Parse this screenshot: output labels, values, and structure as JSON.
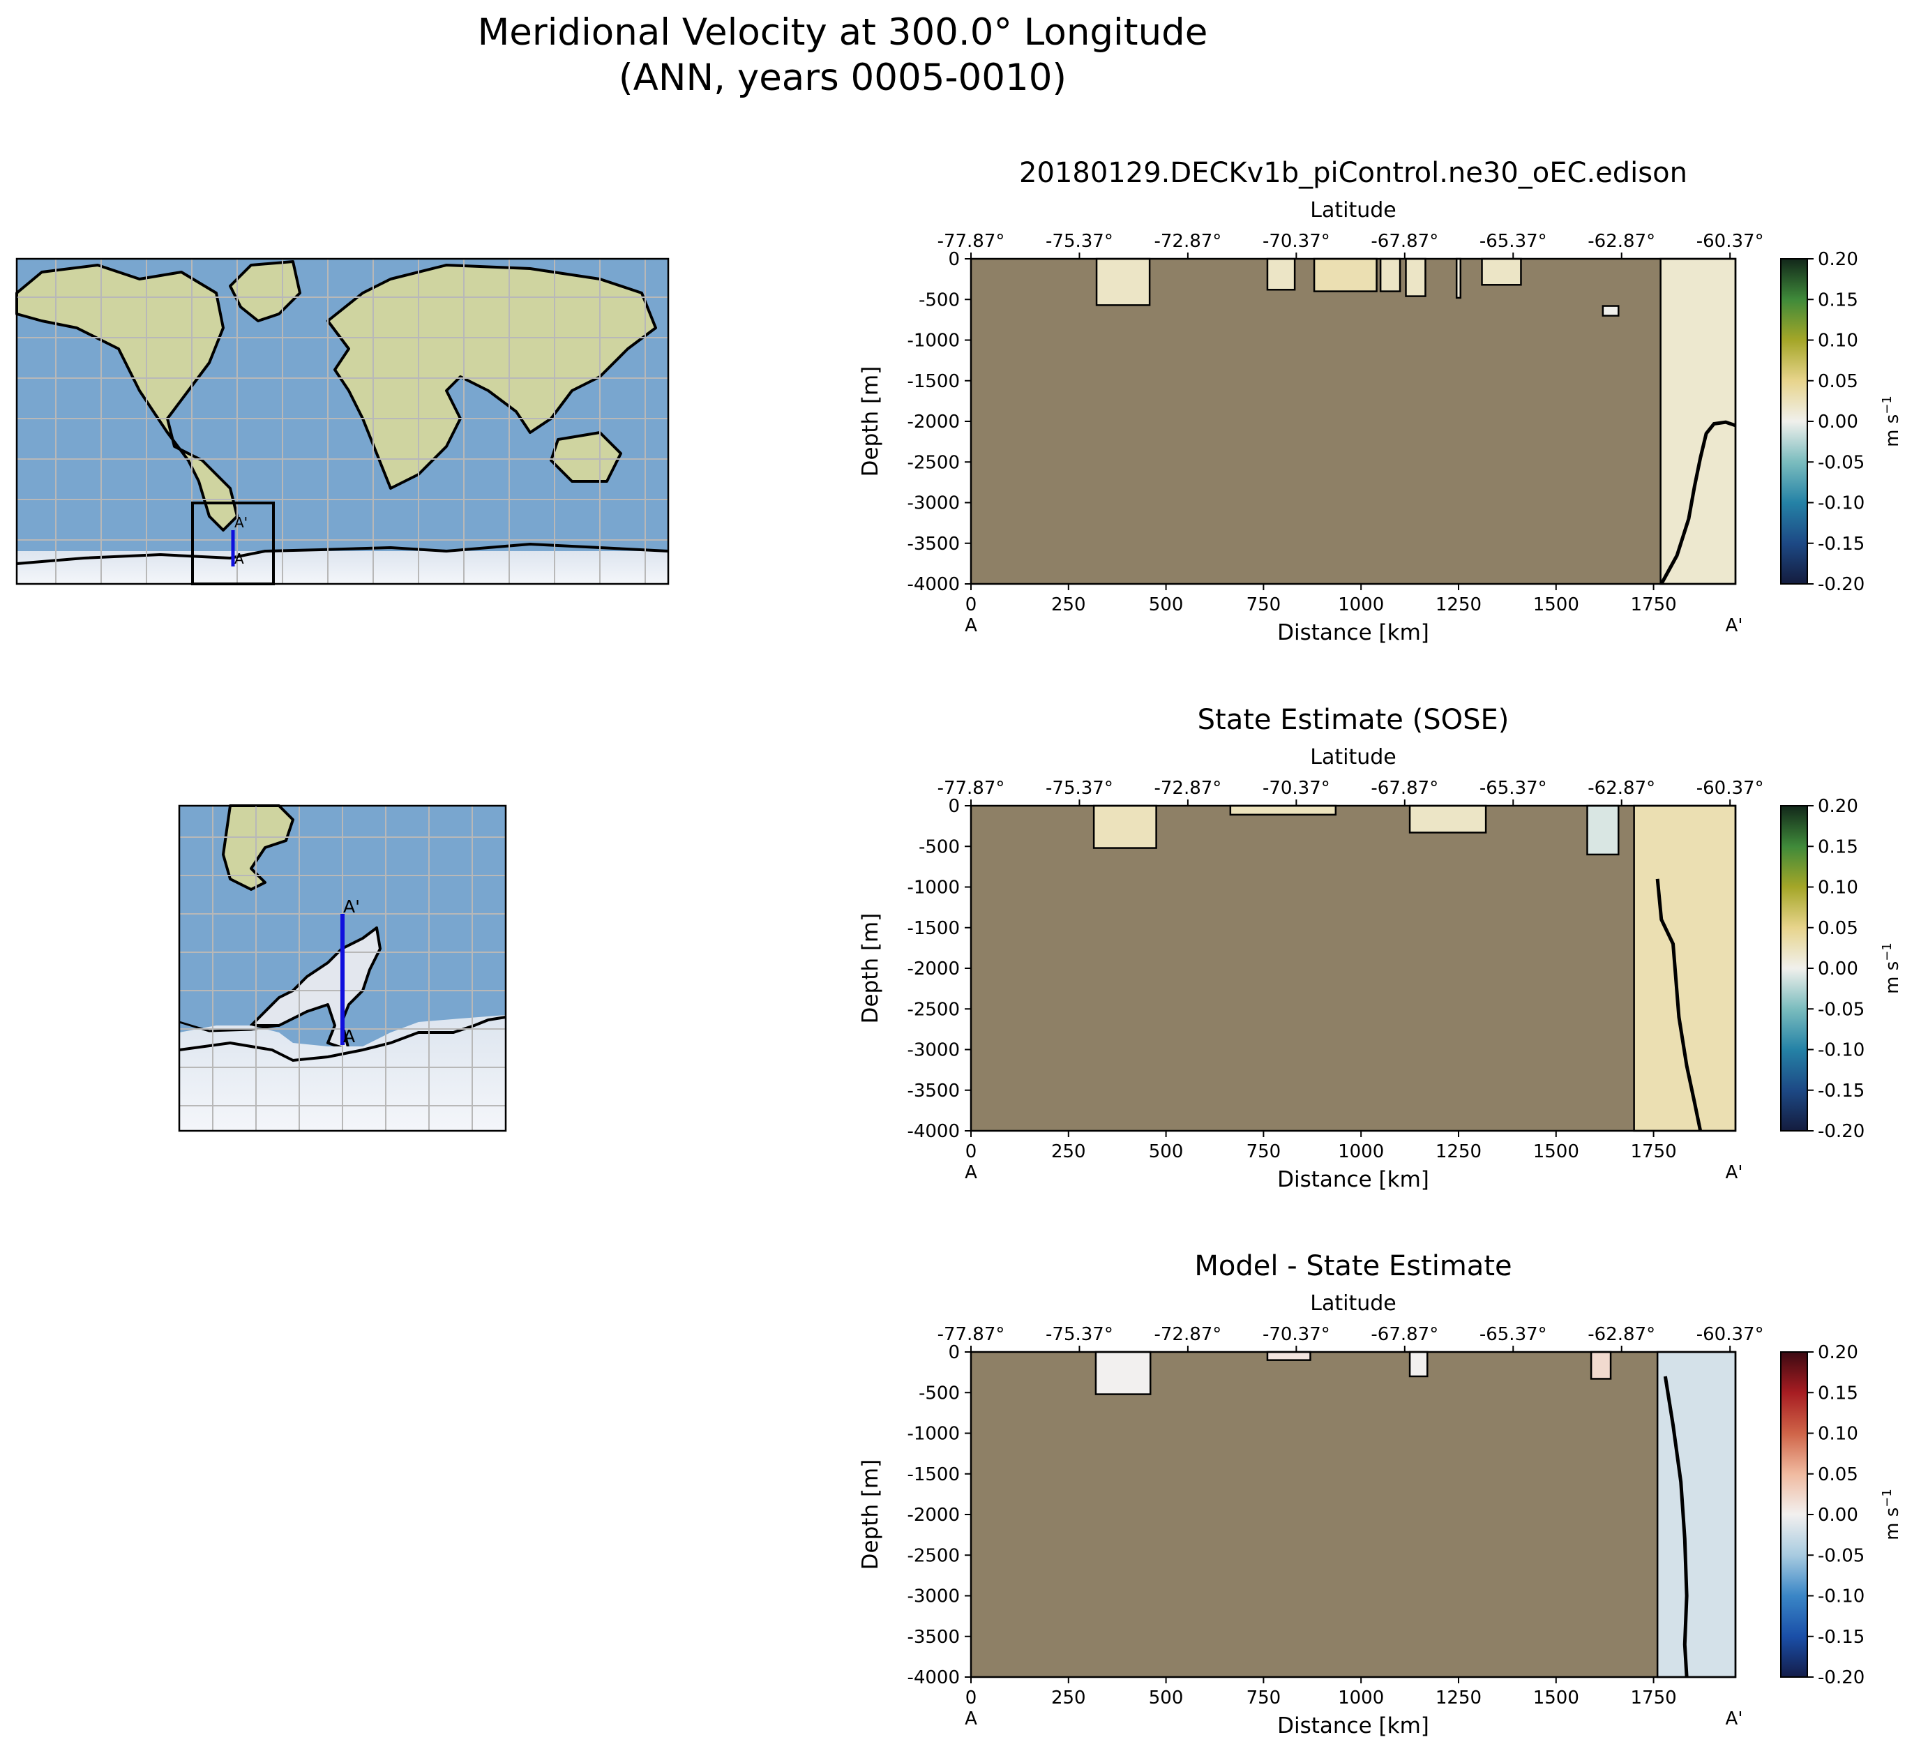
{
  "figure": {
    "title_line1": "Meridional Velocity at 300.0° Longitude",
    "title_line2": "(ANN, years 0005-0010)"
  },
  "colors": {
    "land": "#8e8066",
    "ocean": "#7aa6cf",
    "ice": "#e6ecf4",
    "transect": "#1010dd",
    "grid": "#b8b8b8"
  },
  "maps": {
    "transect_start_label": "A",
    "transect_end_label": "A'"
  },
  "chart_data": [
    {
      "type": "heatmap",
      "title": "20180129.DECKv1b_piControl.ne30_oEC.edison",
      "xlabel": "Distance [km]",
      "ylabel": "Depth [m]",
      "top_xlabel": "Latitude",
      "xlim": [
        0,
        1960
      ],
      "ylim": [
        -4000,
        0
      ],
      "xticks": [
        0,
        250,
        500,
        750,
        1000,
        1250,
        1500,
        1750
      ],
      "yticks": [
        0,
        -500,
        -1000,
        -1500,
        -2000,
        -2500,
        -3000,
        -3500,
        -4000
      ],
      "top_ticks": [
        {
          "x": 0,
          "label": "-77.87°"
        },
        {
          "x": 278,
          "label": "-75.37°"
        },
        {
          "x": 556,
          "label": "-72.87°"
        },
        {
          "x": 834,
          "label": "-70.37°"
        },
        {
          "x": 1112,
          "label": "-67.87°"
        },
        {
          "x": 1390,
          "label": "-65.37°"
        },
        {
          "x": 1668,
          "label": "-62.87°"
        },
        {
          "x": 1946,
          "label": "-60.37°"
        }
      ],
      "start_label": "A",
      "end_label": "A'",
      "colorbar": {
        "label": "m s",
        "label_exp": "−1",
        "ticks": [
          "0.20",
          "0.15",
          "0.10",
          "0.05",
          "0.00",
          "-0.05",
          "-0.10",
          "-0.15",
          "-0.20"
        ],
        "range": [
          -0.2,
          0.2
        ],
        "colormap": [
          "#141c3e",
          "#1d4985",
          "#2582a6",
          "#7bbcbe",
          "#f0f0ec",
          "#e7d48c",
          "#a4a628",
          "#3f8a3a",
          "#12271a"
        ]
      },
      "ocean_regions": [
        {
          "x": [
            322,
            458
          ],
          "depth": [
            0,
            -570
          ],
          "value": 0.02
        },
        {
          "x": [
            760,
            830
          ],
          "depth": [
            0,
            -380
          ],
          "value": 0.02
        },
        {
          "x": [
            880,
            1040
          ],
          "depth": [
            0,
            -400
          ],
          "value": 0.03
        },
        {
          "x": [
            1050,
            1100
          ],
          "depth": [
            0,
            -400
          ],
          "value": 0.02
        },
        {
          "x": [
            1115,
            1165
          ],
          "depth": [
            0,
            -460
          ],
          "value": 0.02
        },
        {
          "x": [
            1245,
            1255
          ],
          "depth": [
            0,
            -480
          ],
          "value": 0.01
        },
        {
          "x": [
            1310,
            1410
          ],
          "depth": [
            0,
            -320
          ],
          "value": 0.02
        },
        {
          "x": [
            1620,
            1660
          ],
          "depth": [
            -580,
            -700
          ],
          "value": 0.0
        },
        {
          "x": [
            1768,
            1960
          ],
          "depth": [
            0,
            -4000
          ],
          "value": 0.015
        }
      ],
      "zero_contour": [
        [
          1770,
          -4000
        ],
        [
          1810,
          -3650
        ],
        [
          1840,
          -3200
        ],
        [
          1855,
          -2800
        ],
        [
          1870,
          -2450
        ],
        [
          1885,
          -2150
        ],
        [
          1905,
          -2030
        ],
        [
          1935,
          -2010
        ],
        [
          1960,
          -2050
        ]
      ]
    },
    {
      "type": "heatmap",
      "title": "State Estimate (SOSE)",
      "xlabel": "Distance [km]",
      "ylabel": "Depth [m]",
      "top_xlabel": "Latitude",
      "xlim": [
        0,
        1960
      ],
      "ylim": [
        -4000,
        0
      ],
      "xticks": [
        0,
        250,
        500,
        750,
        1000,
        1250,
        1500,
        1750
      ],
      "yticks": [
        0,
        -500,
        -1000,
        -1500,
        -2000,
        -2500,
        -3000,
        -3500,
        -4000
      ],
      "top_ticks": [
        {
          "x": 0,
          "label": "-77.87°"
        },
        {
          "x": 278,
          "label": "-75.37°"
        },
        {
          "x": 556,
          "label": "-72.87°"
        },
        {
          "x": 834,
          "label": "-70.37°"
        },
        {
          "x": 1112,
          "label": "-67.87°"
        },
        {
          "x": 1390,
          "label": "-65.37°"
        },
        {
          "x": 1668,
          "label": "-62.87°"
        },
        {
          "x": 1946,
          "label": "-60.37°"
        }
      ],
      "start_label": "A",
      "end_label": "A'",
      "colorbar": {
        "label": "m s",
        "label_exp": "−1",
        "ticks": [
          "0.20",
          "0.15",
          "0.10",
          "0.05",
          "0.00",
          "-0.05",
          "-0.10",
          "-0.15",
          "-0.20"
        ],
        "range": [
          -0.2,
          0.2
        ],
        "colormap": [
          "#141c3e",
          "#1d4985",
          "#2582a6",
          "#7bbcbe",
          "#f0f0ec",
          "#e7d48c",
          "#a4a628",
          "#3f8a3a",
          "#12271a"
        ]
      },
      "ocean_regions": [
        {
          "x": [
            315,
            475
          ],
          "depth": [
            0,
            -520
          ],
          "value": 0.025
        },
        {
          "x": [
            665,
            935
          ],
          "depth": [
            0,
            -110
          ],
          "value": 0.025
        },
        {
          "x": [
            1125,
            1320
          ],
          "depth": [
            0,
            -330
          ],
          "value": 0.02
        },
        {
          "x": [
            1580,
            1660
          ],
          "depth": [
            0,
            -600
          ],
          "value": -0.01
        },
        {
          "x": [
            1700,
            1960
          ],
          "depth": [
            0,
            -4000
          ],
          "value": 0.03
        }
      ],
      "zero_contour": [
        [
          1760,
          -900
        ],
        [
          1770,
          -1400
        ],
        [
          1800,
          -1700
        ],
        [
          1815,
          -2600
        ],
        [
          1835,
          -3200
        ],
        [
          1855,
          -3650
        ],
        [
          1870,
          -4000
        ]
      ]
    },
    {
      "type": "heatmap",
      "title": "Model - State Estimate",
      "xlabel": "Distance [km]",
      "ylabel": "Depth [m]",
      "top_xlabel": "Latitude",
      "xlim": [
        0,
        1960
      ],
      "ylim": [
        -4000,
        0
      ],
      "xticks": [
        0,
        250,
        500,
        750,
        1000,
        1250,
        1500,
        1750
      ],
      "yticks": [
        0,
        -500,
        -1000,
        -1500,
        -2000,
        -2500,
        -3000,
        -3500,
        -4000
      ],
      "top_ticks": [
        {
          "x": 0,
          "label": "-77.87°"
        },
        {
          "x": 278,
          "label": "-75.37°"
        },
        {
          "x": 556,
          "label": "-72.87°"
        },
        {
          "x": 834,
          "label": "-70.37°"
        },
        {
          "x": 1112,
          "label": "-67.87°"
        },
        {
          "x": 1390,
          "label": "-65.37°"
        },
        {
          "x": 1668,
          "label": "-62.87°"
        },
        {
          "x": 1946,
          "label": "-60.37°"
        }
      ],
      "start_label": "A",
      "end_label": "A'",
      "colorbar": {
        "label": "m s",
        "label_exp": "−1",
        "ticks": [
          "0.20",
          "0.15",
          "0.10",
          "0.05",
          "0.00",
          "-0.05",
          "-0.10",
          "-0.15",
          "-0.20"
        ],
        "range": [
          -0.2,
          0.2
        ],
        "colormap": [
          "#141d4a",
          "#1a4fa8",
          "#3a86c6",
          "#a8cbe0",
          "#f2f0ef",
          "#f0baa0",
          "#cf6448",
          "#a71d22",
          "#3c0a12"
        ]
      },
      "ocean_regions": [
        {
          "x": [
            320,
            460
          ],
          "depth": [
            0,
            -520
          ],
          "value": 0.0
        },
        {
          "x": [
            760,
            870
          ],
          "depth": [
            0,
            -100
          ],
          "value": 0.01
        },
        {
          "x": [
            1125,
            1170
          ],
          "depth": [
            0,
            -300
          ],
          "value": 0.0
        },
        {
          "x": [
            1590,
            1640
          ],
          "depth": [
            0,
            -330
          ],
          "value": 0.02
        },
        {
          "x": [
            1760,
            1960
          ],
          "depth": [
            0,
            -4000
          ],
          "value": -0.02
        }
      ],
      "zero_contour": [
        [
          1780,
          -300
        ],
        [
          1800,
          -900
        ],
        [
          1820,
          -1600
        ],
        [
          1830,
          -2300
        ],
        [
          1835,
          -3000
        ],
        [
          1830,
          -3600
        ],
        [
          1835,
          -4000
        ]
      ]
    }
  ]
}
